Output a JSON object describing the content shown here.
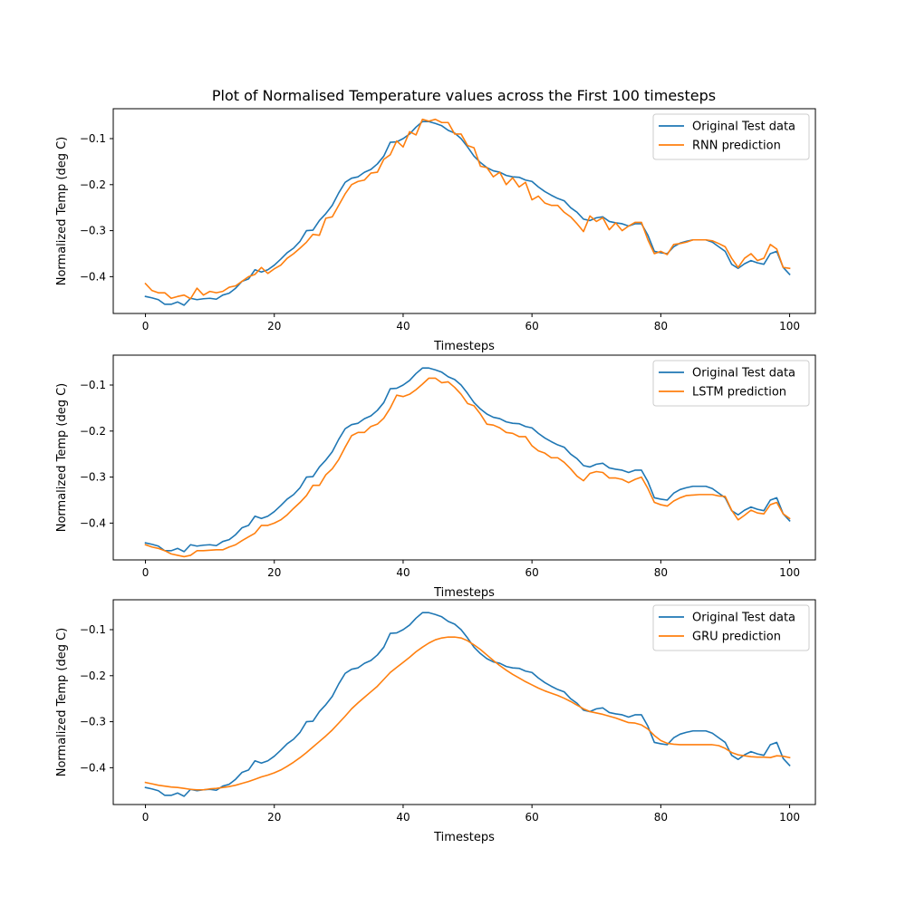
{
  "figure": {
    "title": "Plot of Normalised Temperature values across the First 100 timesteps"
  },
  "colors": {
    "original": "#1f77b4",
    "prediction": "#ff7f0e"
  },
  "chart_data": [
    {
      "type": "line",
      "xlabel": "Timesteps",
      "ylabel": "Normalized Temp (deg C)",
      "xlim": [
        -5,
        104
      ],
      "ylim": [
        -0.48,
        -0.035
      ],
      "xticks": [
        "0",
        "20",
        "40",
        "60",
        "80",
        "100"
      ],
      "yticks": [
        "-0.1",
        "-0.2",
        "-0.3",
        "-0.4"
      ],
      "legend_position": "top-right",
      "x_start": 0,
      "series": [
        {
          "name": "Original Test data",
          "color": "#1f77b4",
          "values": [
            -0.443,
            -0.446,
            -0.45,
            -0.46,
            -0.46,
            -0.455,
            -0.462,
            -0.447,
            -0.45,
            -0.448,
            -0.447,
            -0.449,
            -0.44,
            -0.436,
            -0.425,
            -0.41,
            -0.405,
            -0.385,
            -0.39,
            -0.385,
            -0.375,
            -0.362,
            -0.348,
            -0.338,
            -0.323,
            -0.3,
            -0.299,
            -0.278,
            -0.263,
            -0.245,
            -0.218,
            -0.195,
            -0.186,
            -0.183,
            -0.173,
            -0.167,
            -0.155,
            -0.138,
            -0.108,
            -0.107,
            -0.1,
            -0.09,
            -0.075,
            -0.063,
            -0.063,
            -0.067,
            -0.072,
            -0.082,
            -0.088,
            -0.1,
            -0.118,
            -0.138,
            -0.152,
            -0.163,
            -0.17,
            -0.173,
            -0.18,
            -0.183,
            -0.184,
            -0.19,
            -0.193,
            -0.205,
            -0.215,
            -0.223,
            -0.23,
            -0.235,
            -0.25,
            -0.26,
            -0.275,
            -0.278,
            -0.272,
            -0.27,
            -0.28,
            -0.283,
            -0.285,
            -0.29,
            -0.285,
            -0.285,
            -0.31,
            -0.345,
            -0.348,
            -0.35,
            -0.335,
            -0.327,
            -0.323,
            -0.32,
            -0.32,
            -0.32,
            -0.325,
            -0.335,
            -0.345,
            -0.373,
            -0.382,
            -0.372,
            -0.365,
            -0.37,
            -0.373,
            -0.35,
            -0.345,
            -0.38,
            -0.395
          ]
        },
        {
          "name": "RNN prediction",
          "color": "#ff7f0e",
          "values": [
            -0.415,
            -0.43,
            -0.435,
            -0.435,
            -0.447,
            -0.443,
            -0.44,
            -0.448,
            -0.425,
            -0.44,
            -0.432,
            -0.435,
            -0.432,
            -0.423,
            -0.42,
            -0.41,
            -0.4,
            -0.395,
            -0.38,
            -0.393,
            -0.383,
            -0.375,
            -0.36,
            -0.35,
            -0.338,
            -0.325,
            -0.308,
            -0.31,
            -0.273,
            -0.27,
            -0.245,
            -0.22,
            -0.2,
            -0.193,
            -0.19,
            -0.175,
            -0.173,
            -0.145,
            -0.135,
            -0.105,
            -0.118,
            -0.085,
            -0.092,
            -0.058,
            -0.062,
            -0.058,
            -0.065,
            -0.065,
            -0.09,
            -0.09,
            -0.115,
            -0.12,
            -0.16,
            -0.163,
            -0.183,
            -0.173,
            -0.2,
            -0.185,
            -0.205,
            -0.195,
            -0.233,
            -0.225,
            -0.24,
            -0.245,
            -0.245,
            -0.26,
            -0.27,
            -0.285,
            -0.302,
            -0.268,
            -0.28,
            -0.272,
            -0.298,
            -0.283,
            -0.3,
            -0.29,
            -0.282,
            -0.282,
            -0.32,
            -0.35,
            -0.345,
            -0.352,
            -0.33,
            -0.328,
            -0.325,
            -0.32,
            -0.32,
            -0.32,
            -0.322,
            -0.328,
            -0.335,
            -0.36,
            -0.38,
            -0.36,
            -0.35,
            -0.365,
            -0.36,
            -0.33,
            -0.34,
            -0.38,
            -0.382
          ]
        }
      ]
    },
    {
      "type": "line",
      "xlabel": "Timesteps",
      "ylabel": "Normalized Temp (deg C)",
      "xlim": [
        -5,
        104
      ],
      "ylim": [
        -0.48,
        -0.035
      ],
      "xticks": [
        "0",
        "20",
        "40",
        "60",
        "80",
        "100"
      ],
      "yticks": [
        "-0.1",
        "-0.2",
        "-0.3",
        "-0.4"
      ],
      "legend_position": "top-right",
      "x_start": 0,
      "series": [
        {
          "name": "Original Test data",
          "color": "#1f77b4",
          "values": [
            -0.443,
            -0.446,
            -0.45,
            -0.46,
            -0.46,
            -0.455,
            -0.462,
            -0.447,
            -0.45,
            -0.448,
            -0.447,
            -0.449,
            -0.44,
            -0.436,
            -0.425,
            -0.41,
            -0.405,
            -0.385,
            -0.39,
            -0.385,
            -0.375,
            -0.362,
            -0.348,
            -0.338,
            -0.323,
            -0.3,
            -0.299,
            -0.278,
            -0.263,
            -0.245,
            -0.218,
            -0.195,
            -0.186,
            -0.183,
            -0.173,
            -0.167,
            -0.155,
            -0.138,
            -0.108,
            -0.107,
            -0.1,
            -0.09,
            -0.075,
            -0.063,
            -0.063,
            -0.067,
            -0.072,
            -0.082,
            -0.088,
            -0.1,
            -0.118,
            -0.138,
            -0.152,
            -0.163,
            -0.17,
            -0.173,
            -0.18,
            -0.183,
            -0.184,
            -0.19,
            -0.193,
            -0.205,
            -0.215,
            -0.223,
            -0.23,
            -0.235,
            -0.25,
            -0.26,
            -0.275,
            -0.278,
            -0.272,
            -0.27,
            -0.28,
            -0.283,
            -0.285,
            -0.29,
            -0.285,
            -0.285,
            -0.31,
            -0.345,
            -0.348,
            -0.35,
            -0.335,
            -0.327,
            -0.323,
            -0.32,
            -0.32,
            -0.32,
            -0.325,
            -0.335,
            -0.345,
            -0.373,
            -0.382,
            -0.372,
            -0.365,
            -0.37,
            -0.373,
            -0.35,
            -0.345,
            -0.38,
            -0.395
          ]
        },
        {
          "name": "LSTM prediction",
          "color": "#ff7f0e",
          "values": [
            -0.447,
            -0.452,
            -0.455,
            -0.46,
            -0.467,
            -0.47,
            -0.473,
            -0.47,
            -0.46,
            -0.46,
            -0.459,
            -0.458,
            -0.458,
            -0.452,
            -0.447,
            -0.438,
            -0.43,
            -0.422,
            -0.405,
            -0.405,
            -0.4,
            -0.393,
            -0.382,
            -0.368,
            -0.355,
            -0.34,
            -0.318,
            -0.318,
            -0.295,
            -0.282,
            -0.262,
            -0.235,
            -0.21,
            -0.203,
            -0.203,
            -0.19,
            -0.185,
            -0.172,
            -0.15,
            -0.122,
            -0.125,
            -0.12,
            -0.11,
            -0.098,
            -0.085,
            -0.085,
            -0.095,
            -0.093,
            -0.105,
            -0.12,
            -0.14,
            -0.145,
            -0.163,
            -0.185,
            -0.187,
            -0.193,
            -0.203,
            -0.205,
            -0.212,
            -0.212,
            -0.232,
            -0.243,
            -0.248,
            -0.258,
            -0.258,
            -0.268,
            -0.282,
            -0.298,
            -0.308,
            -0.292,
            -0.288,
            -0.29,
            -0.302,
            -0.302,
            -0.305,
            -0.312,
            -0.305,
            -0.3,
            -0.325,
            -0.355,
            -0.36,
            -0.363,
            -0.352,
            -0.345,
            -0.34,
            -0.339,
            -0.338,
            -0.338,
            -0.338,
            -0.341,
            -0.342,
            -0.372,
            -0.393,
            -0.383,
            -0.372,
            -0.378,
            -0.38,
            -0.36,
            -0.355,
            -0.38,
            -0.39
          ]
        }
      ]
    },
    {
      "type": "line",
      "xlabel": "Timesteps",
      "ylabel": "Normalized Temp (deg C)",
      "xlim": [
        -5,
        104
      ],
      "ylim": [
        -0.48,
        -0.035
      ],
      "xticks": [
        "0",
        "20",
        "40",
        "60",
        "80",
        "100"
      ],
      "yticks": [
        "-0.1",
        "-0.2",
        "-0.3",
        "-0.4"
      ],
      "legend_position": "top-right",
      "x_start": 0,
      "series": [
        {
          "name": "Original Test data",
          "color": "#1f77b4",
          "values": [
            -0.443,
            -0.446,
            -0.45,
            -0.46,
            -0.46,
            -0.455,
            -0.462,
            -0.447,
            -0.45,
            -0.448,
            -0.447,
            -0.449,
            -0.44,
            -0.436,
            -0.425,
            -0.41,
            -0.405,
            -0.385,
            -0.39,
            -0.385,
            -0.375,
            -0.362,
            -0.348,
            -0.338,
            -0.323,
            -0.3,
            -0.299,
            -0.278,
            -0.263,
            -0.245,
            -0.218,
            -0.195,
            -0.186,
            -0.183,
            -0.173,
            -0.167,
            -0.155,
            -0.138,
            -0.108,
            -0.107,
            -0.1,
            -0.09,
            -0.075,
            -0.063,
            -0.063,
            -0.067,
            -0.072,
            -0.082,
            -0.088,
            -0.1,
            -0.118,
            -0.138,
            -0.152,
            -0.163,
            -0.17,
            -0.173,
            -0.18,
            -0.183,
            -0.184,
            -0.19,
            -0.193,
            -0.205,
            -0.215,
            -0.223,
            -0.23,
            -0.235,
            -0.25,
            -0.26,
            -0.275,
            -0.278,
            -0.272,
            -0.27,
            -0.28,
            -0.283,
            -0.285,
            -0.29,
            -0.285,
            -0.285,
            -0.31,
            -0.345,
            -0.348,
            -0.35,
            -0.335,
            -0.327,
            -0.323,
            -0.32,
            -0.32,
            -0.32,
            -0.325,
            -0.335,
            -0.345,
            -0.373,
            -0.382,
            -0.372,
            -0.365,
            -0.37,
            -0.373,
            -0.35,
            -0.345,
            -0.38,
            -0.395
          ]
        },
        {
          "name": "GRU prediction",
          "color": "#ff7f0e",
          "values": [
            -0.432,
            -0.435,
            -0.438,
            -0.44,
            -0.442,
            -0.443,
            -0.445,
            -0.447,
            -0.448,
            -0.448,
            -0.446,
            -0.445,
            -0.443,
            -0.441,
            -0.438,
            -0.434,
            -0.43,
            -0.425,
            -0.42,
            -0.416,
            -0.411,
            -0.405,
            -0.397,
            -0.388,
            -0.378,
            -0.367,
            -0.355,
            -0.343,
            -0.331,
            -0.318,
            -0.303,
            -0.288,
            -0.272,
            -0.259,
            -0.247,
            -0.235,
            -0.223,
            -0.208,
            -0.193,
            -0.182,
            -0.171,
            -0.16,
            -0.148,
            -0.138,
            -0.129,
            -0.122,
            -0.118,
            -0.116,
            -0.116,
            -0.118,
            -0.124,
            -0.133,
            -0.143,
            -0.155,
            -0.167,
            -0.178,
            -0.188,
            -0.197,
            -0.205,
            -0.213,
            -0.22,
            -0.227,
            -0.233,
            -0.238,
            -0.243,
            -0.249,
            -0.256,
            -0.264,
            -0.272,
            -0.278,
            -0.281,
            -0.284,
            -0.288,
            -0.292,
            -0.297,
            -0.302,
            -0.303,
            -0.307,
            -0.316,
            -0.33,
            -0.341,
            -0.347,
            -0.349,
            -0.35,
            -0.35,
            -0.35,
            -0.35,
            -0.35,
            -0.35,
            -0.352,
            -0.358,
            -0.367,
            -0.372,
            -0.374,
            -0.376,
            -0.377,
            -0.377,
            -0.378,
            -0.374,
            -0.375,
            -0.378
          ]
        }
      ]
    }
  ]
}
